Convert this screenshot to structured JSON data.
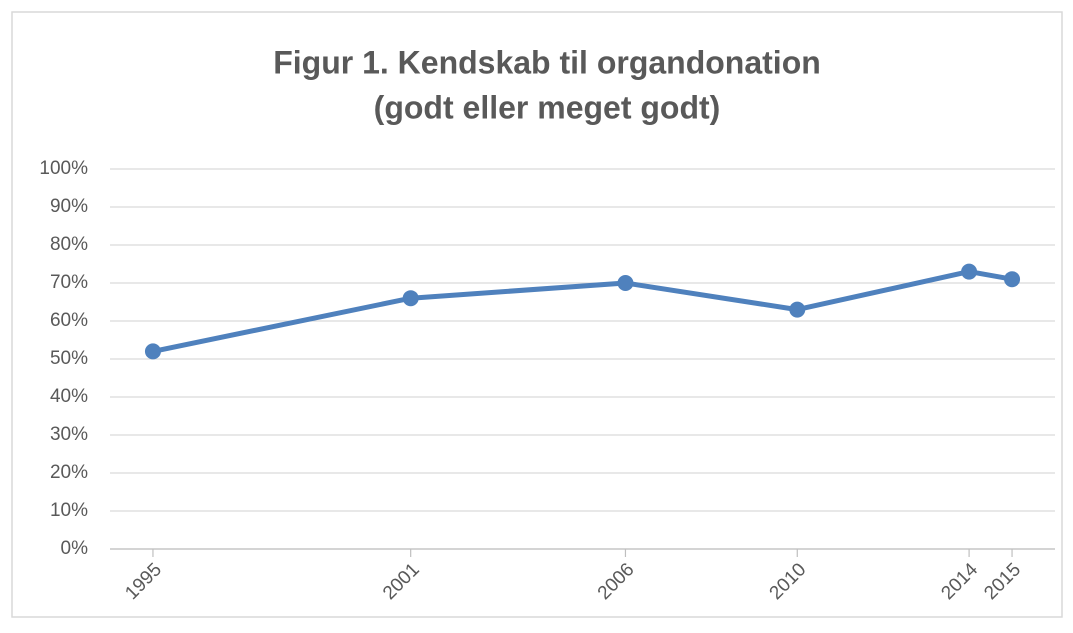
{
  "chart_data": {
    "type": "line",
    "title": [
      "Figur 1. Kendskab til organdonation",
      "(godt eller meget godt)"
    ],
    "x": [
      1995,
      2001,
      2006,
      2010,
      2014,
      2015
    ],
    "series": [
      {
        "color": "#4f81bd",
        "values": [
          52,
          66,
          70,
          63,
          73,
          71
        ]
      }
    ],
    "xlim": [
      1994,
      2016
    ],
    "xticks": [
      1995,
      2001,
      2006,
      2010,
      2014,
      2015
    ],
    "ylim": [
      0,
      100
    ],
    "yticks": [
      {
        "value": 0,
        "label": "0%"
      },
      {
        "value": 10,
        "label": "10%"
      },
      {
        "value": 20,
        "label": "20%"
      },
      {
        "value": 30,
        "label": "30%"
      },
      {
        "value": 40,
        "label": "40%"
      },
      {
        "value": 50,
        "label": "50%"
      },
      {
        "value": 60,
        "label": "60%"
      },
      {
        "value": 70,
        "label": "70%"
      },
      {
        "value": 80,
        "label": "80%"
      },
      {
        "value": 90,
        "label": "90%"
      },
      {
        "value": 100,
        "label": "100%"
      }
    ],
    "grid": true
  }
}
